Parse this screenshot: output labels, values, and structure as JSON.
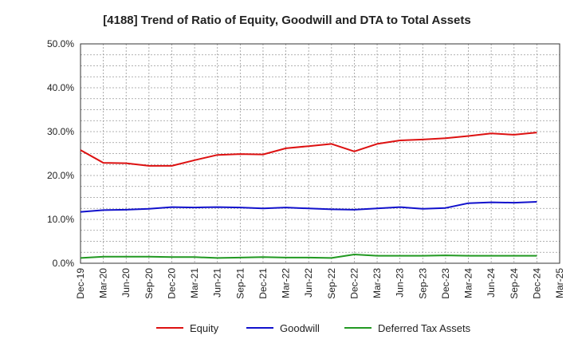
{
  "chart_data": {
    "type": "line",
    "title": "[4188]  Trend of Ratio of Equity, Goodwill and DTA to Total Assets",
    "xlabel": "",
    "ylabel": "",
    "ylim": [
      0,
      50
    ],
    "y_ticks": [
      "0.0%",
      "10.0%",
      "20.0%",
      "30.0%",
      "40.0%",
      "50.0%"
    ],
    "y_tick_values": [
      0,
      10,
      20,
      30,
      40,
      50
    ],
    "grid": true,
    "legend_position": "bottom",
    "categories": [
      "Dec-19",
      "Mar-20",
      "Jun-20",
      "Sep-20",
      "Dec-20",
      "Mar-21",
      "Jun-21",
      "Sep-21",
      "Dec-21",
      "Mar-22",
      "Jun-22",
      "Sep-22",
      "Dec-22",
      "Mar-23",
      "Jun-23",
      "Sep-23",
      "Dec-23",
      "Mar-24",
      "Jun-24",
      "Sep-24",
      "Dec-24",
      "Mar-25"
    ],
    "series": [
      {
        "name": "Equity",
        "color": "#dd1111",
        "values": [
          25.8,
          22.9,
          22.8,
          22.2,
          22.2,
          23.5,
          24.7,
          24.9,
          24.8,
          26.2,
          26.7,
          27.2,
          25.5,
          27.2,
          28.0,
          28.2,
          28.5,
          29.0,
          29.6,
          29.3,
          29.8,
          null
        ]
      },
      {
        "name": "Goodwill",
        "color": "#1111cc",
        "values": [
          11.7,
          12.1,
          12.2,
          12.4,
          12.8,
          12.7,
          12.8,
          12.7,
          12.5,
          12.7,
          12.5,
          12.3,
          12.2,
          12.5,
          12.8,
          12.4,
          12.6,
          13.7,
          13.9,
          13.8,
          14.0,
          null
        ]
      },
      {
        "name": "Deferred Tax Assets",
        "color": "#229922",
        "values": [
          1.2,
          1.5,
          1.5,
          1.5,
          1.4,
          1.4,
          1.2,
          1.3,
          1.4,
          1.3,
          1.3,
          1.2,
          2.0,
          1.7,
          1.7,
          1.7,
          1.8,
          1.7,
          1.7,
          1.7,
          1.7,
          null
        ]
      }
    ]
  }
}
